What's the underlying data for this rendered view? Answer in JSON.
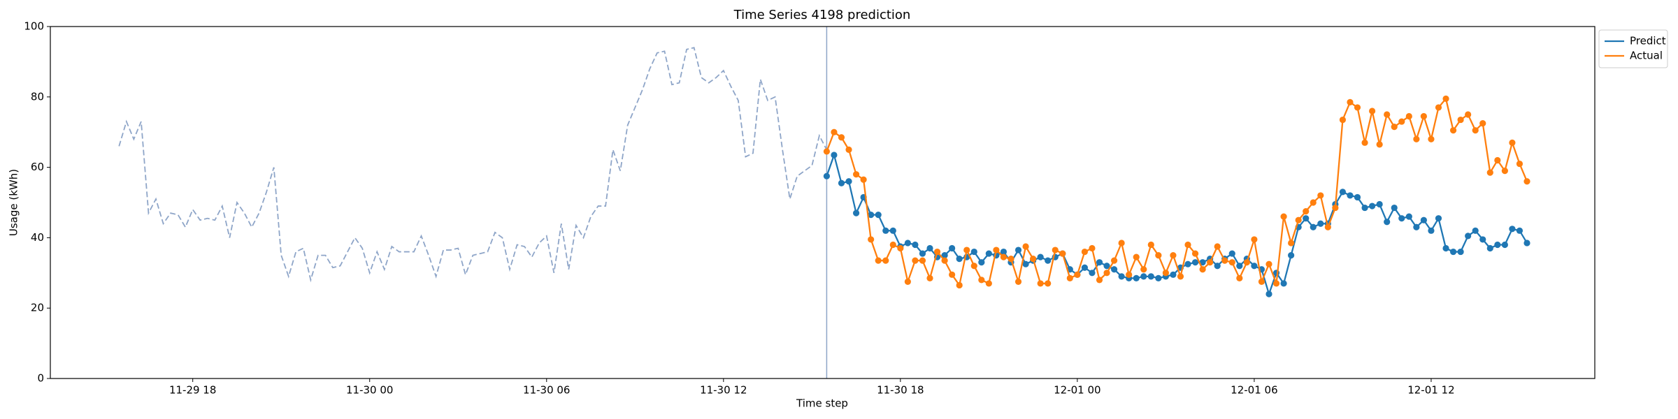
{
  "chart_data": {
    "type": "line",
    "title": "Time Series 4198 prediction",
    "xlabel": "Time step",
    "ylabel": "Usage (kWh)",
    "xlim": [
      13.17,
      65.55
    ],
    "xticks": [
      {
        "value": 18,
        "label": "11-29 18"
      },
      {
        "value": 24,
        "label": "11-30 00"
      },
      {
        "value": 30,
        "label": "11-30 06"
      },
      {
        "value": 36,
        "label": "11-30 12"
      },
      {
        "value": 42,
        "label": "11-30 18"
      },
      {
        "value": 48,
        "label": "12-01 00"
      },
      {
        "value": 54,
        "label": "12-01 06"
      },
      {
        "value": 60,
        "label": "12-01 12"
      }
    ],
    "ylim": [
      0,
      100
    ],
    "yticks": [
      0,
      20,
      40,
      60,
      80,
      100
    ],
    "grid": false,
    "legend": "outside-upper-right",
    "vline": 39.5,
    "vline_color": "#8ea5c8",
    "series": [
      {
        "color": "#8ea5c8",
        "dashed": true,
        "marker": false,
        "x": [
          15.5,
          15.75,
          16,
          16.25,
          16.5,
          16.75,
          17,
          17.25,
          17.5,
          17.75,
          18,
          18.25,
          18.5,
          18.75,
          19,
          19.25,
          19.5,
          19.75,
          20,
          20.25,
          20.5,
          20.75,
          21,
          21.25,
          21.5,
          21.75,
          22,
          22.25,
          22.5,
          22.75,
          23,
          23.25,
          23.5,
          23.75,
          24,
          24.25,
          24.5,
          24.75,
          25,
          25.25,
          25.5,
          25.75,
          26,
          26.25,
          26.5,
          26.75,
          27,
          27.25,
          27.5,
          27.75,
          28,
          28.25,
          28.5,
          28.75,
          29,
          29.25,
          29.5,
          29.75,
          30,
          30.25,
          30.5,
          30.75,
          31,
          31.25,
          31.5,
          31.75,
          32,
          32.25,
          32.5,
          32.75,
          33,
          33.25,
          33.5,
          33.75,
          34,
          34.25,
          34.5,
          34.75,
          35,
          35.25,
          35.5,
          35.75,
          36,
          36.25,
          36.5,
          36.75,
          37,
          37.25,
          37.5,
          37.75,
          38,
          38.25,
          38.5,
          38.75,
          39,
          39.25,
          39.5
        ],
        "values": [
          66,
          73,
          68,
          73,
          47,
          51,
          44,
          47,
          46.5,
          43,
          48,
          45,
          45.5,
          45,
          49,
          40,
          50,
          47,
          43,
          47,
          53,
          60,
          35,
          29,
          36,
          37,
          28,
          35,
          35,
          31.5,
          32,
          36,
          40,
          37,
          30,
          36,
          31,
          37.5,
          36,
          36,
          36,
          40.5,
          35,
          29,
          36.5,
          36.5,
          37,
          29.5,
          35,
          35.5,
          36,
          41.5,
          40,
          31,
          38,
          37.5,
          34.5,
          38.5,
          40.5,
          30,
          44,
          31,
          43.5,
          40,
          46,
          49,
          49,
          65,
          59,
          72,
          77,
          82,
          88,
          92.5,
          93,
          83.5,
          84,
          93.5,
          94,
          85.5,
          84,
          85.5,
          87.5,
          83,
          79,
          63,
          64,
          85,
          79,
          80,
          65,
          51,
          57.5,
          59,
          60.5,
          69,
          65
        ]
      },
      {
        "name": "Predict",
        "color": "#1f77b4",
        "dashed": false,
        "marker": true,
        "x": [
          39.5,
          39.75,
          40,
          40.25,
          40.5,
          40.75,
          41,
          41.25,
          41.5,
          41.75,
          42,
          42.25,
          42.5,
          42.75,
          43,
          43.25,
          43.5,
          43.75,
          44,
          44.25,
          44.5,
          44.75,
          45,
          45.25,
          45.5,
          45.75,
          46,
          46.25,
          46.5,
          46.75,
          47,
          47.25,
          47.5,
          47.75,
          48,
          48.25,
          48.5,
          48.75,
          49,
          49.25,
          49.5,
          49.75,
          50,
          50.25,
          50.5,
          50.75,
          51,
          51.25,
          51.5,
          51.75,
          52,
          52.25,
          52.5,
          52.75,
          53,
          53.25,
          53.5,
          53.75,
          54,
          54.25,
          54.5,
          54.75,
          55,
          55.25,
          55.5,
          55.75,
          56,
          56.25,
          56.5,
          56.75,
          57,
          57.25,
          57.5,
          57.75,
          58,
          58.25,
          58.5,
          58.75,
          59,
          59.25,
          59.5,
          59.75,
          60,
          60.25,
          60.5,
          60.75,
          61,
          61.25,
          61.5,
          61.75,
          62,
          62.25,
          62.5,
          62.75,
          63,
          63.25
        ],
        "values": [
          57.5,
          63.5,
          55.5,
          56,
          47,
          51.5,
          46.5,
          46.5,
          42,
          42,
          37.5,
          38.5,
          38,
          35.5,
          37,
          34.5,
          35,
          37,
          34,
          34.5,
          36,
          33,
          35.5,
          35,
          36,
          33,
          36.5,
          32.5,
          33.5,
          34.5,
          33.5,
          34.5,
          35.5,
          31,
          29.5,
          31.5,
          30,
          33,
          32,
          31,
          29,
          28.5,
          28.5,
          29,
          29,
          28.5,
          29,
          29.5,
          31.5,
          32.5,
          33,
          33,
          34,
          32,
          34,
          35.5,
          32,
          34,
          32,
          31,
          24,
          30,
          27,
          35,
          43,
          45.5,
          43,
          44,
          44,
          49.5,
          53,
          52,
          51.5,
          48.5,
          49,
          49.5,
          44.5,
          48.5,
          45.5,
          46,
          43,
          45,
          42,
          45.5,
          37,
          36,
          36,
          40.5,
          42,
          39.5,
          37,
          38,
          38,
          42.5,
          42,
          38.5
        ]
      },
      {
        "name": "Actual",
        "color": "#ff7f0e",
        "dashed": false,
        "marker": true,
        "x": [
          39.5,
          39.75,
          40,
          40.25,
          40.5,
          40.75,
          41,
          41.25,
          41.5,
          41.75,
          42,
          42.25,
          42.5,
          42.75,
          43,
          43.25,
          43.5,
          43.75,
          44,
          44.25,
          44.5,
          44.75,
          45,
          45.25,
          45.5,
          45.75,
          46,
          46.25,
          46.5,
          46.75,
          47,
          47.25,
          47.5,
          47.75,
          48,
          48.25,
          48.5,
          48.75,
          49,
          49.25,
          49.5,
          49.75,
          50,
          50.25,
          50.5,
          50.75,
          51,
          51.25,
          51.5,
          51.75,
          52,
          52.25,
          52.5,
          52.75,
          53,
          53.25,
          53.5,
          53.75,
          54,
          54.25,
          54.5,
          54.75,
          55,
          55.25,
          55.5,
          55.75,
          56,
          56.25,
          56.5,
          56.75,
          57,
          57.25,
          57.5,
          57.75,
          58,
          58.25,
          58.5,
          58.75,
          59,
          59.25,
          59.5,
          59.75,
          60,
          60.25,
          60.5,
          60.75,
          61,
          61.25,
          61.5,
          61.75,
          62,
          62.25,
          62.5,
          62.75,
          63,
          63.25
        ],
        "values": [
          64.5,
          70,
          68.5,
          65,
          58,
          56.5,
          39.5,
          33.5,
          33.5,
          38,
          37,
          27.5,
          33.5,
          33.5,
          28.5,
          36,
          33.5,
          29.5,
          26.5,
          36.5,
          32,
          28,
          27,
          36.5,
          34.5,
          34,
          27.5,
          37.5,
          34,
          27,
          27,
          36.5,
          35.5,
          28.5,
          29.5,
          36,
          37,
          28,
          30,
          33.5,
          38.5,
          29.5,
          34.5,
          31,
          38,
          35,
          30,
          35,
          29,
          38,
          35.5,
          31,
          33,
          37.5,
          33.5,
          33,
          28.5,
          33,
          39.5,
          27.5,
          32.5,
          27,
          46,
          38.5,
          45,
          47.5,
          50,
          52,
          43,
          48.5,
          73.5,
          78.5,
          77,
          67,
          76,
          66.5,
          75,
          71.5,
          73,
          74.5,
          68,
          74.5,
          68,
          77,
          79.5,
          70.5,
          73.5,
          75,
          70.5,
          72.5,
          58.5,
          62,
          59,
          67,
          61,
          56
        ]
      }
    ]
  }
}
